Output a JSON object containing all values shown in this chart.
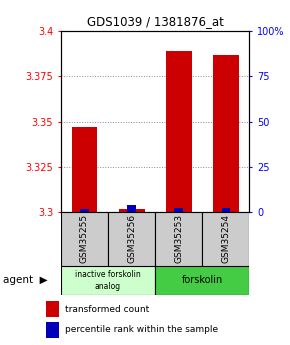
{
  "title": "GDS1039 / 1381876_at",
  "samples": [
    "GSM35255",
    "GSM35256",
    "GSM35253",
    "GSM35254"
  ],
  "transformed_counts": [
    3.347,
    3.302,
    3.389,
    3.387
  ],
  "percentile_ranks": [
    2.0,
    4.0,
    2.5,
    2.5
  ],
  "ylim_left": [
    3.3,
    3.4
  ],
  "ylim_right": [
    0,
    100
  ],
  "yticks_left": [
    3.3,
    3.325,
    3.35,
    3.375,
    3.4
  ],
  "ytick_labels_left": [
    "3.3",
    "3.325",
    "3.35",
    "3.375",
    "3.4"
  ],
  "yticks_right": [
    0,
    25,
    50,
    75,
    100
  ],
  "ytick_labels_right": [
    "0",
    "25",
    "50",
    "75",
    "100%"
  ],
  "bar_color_red": "#cc0000",
  "bar_color_blue": "#0000bb",
  "bar_width": 0.55,
  "blue_bar_width": 0.18,
  "group1_color": "#ccffcc",
  "group2_color": "#44cc44",
  "group1_label": "inactive forskolin\nanalog",
  "group2_label": "forskolin",
  "agent_label": "agent",
  "legend_red": "transformed count",
  "legend_blue": "percentile rank within the sample",
  "grid_color": "#888888",
  "sample_box_color": "#cccccc"
}
